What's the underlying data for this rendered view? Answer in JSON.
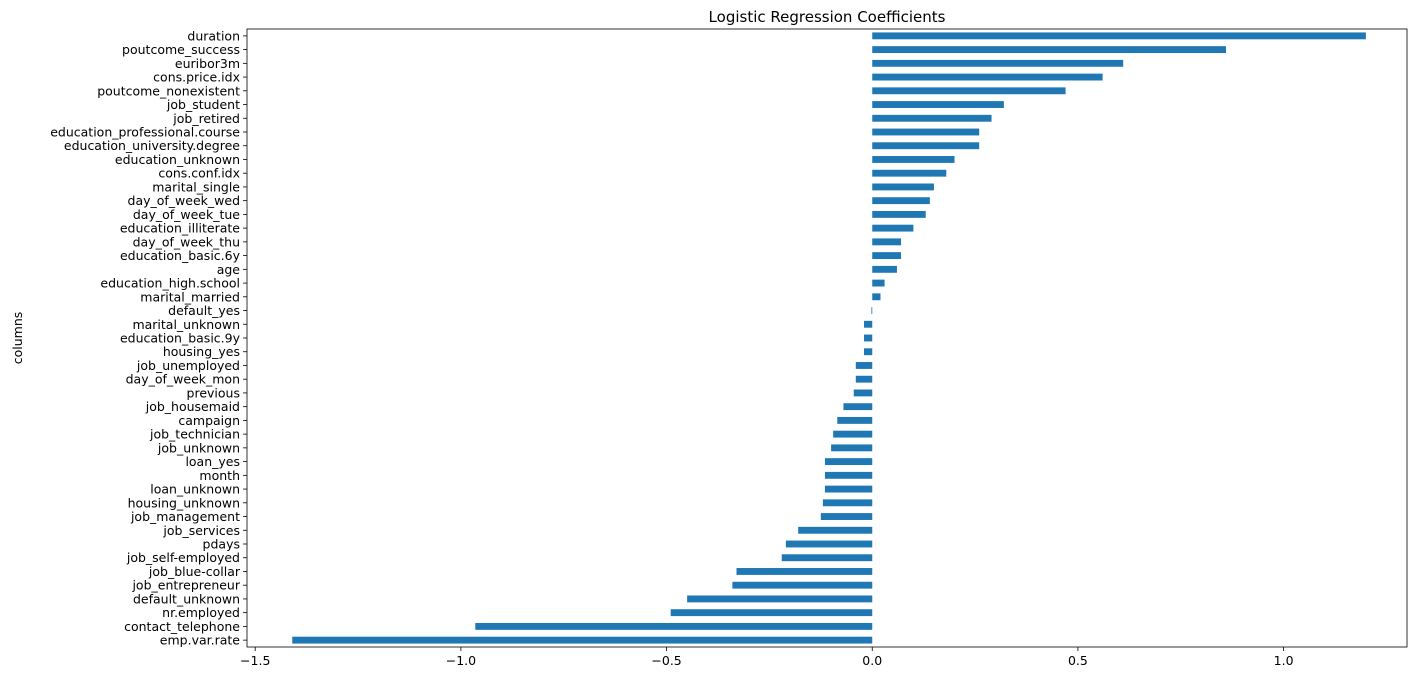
{
  "chart_data": {
    "type": "bar",
    "orientation": "horizontal",
    "title": "Logistic Regression Coefficients",
    "xlabel": "",
    "ylabel": "columns",
    "xlim": [
      -1.52,
      1.3
    ],
    "xticks": [
      -1.5,
      -1.0,
      -0.5,
      0.0,
      0.5,
      1.0
    ],
    "xtick_labels": [
      "−1.5",
      "−1.0",
      "−0.5",
      "0.0",
      "0.5",
      "1.0"
    ],
    "grid": false,
    "bar_color": "#1f77b4",
    "categories": [
      "duration",
      "poutcome_success",
      "euribor3m",
      "cons.price.idx",
      "poutcome_nonexistent",
      "job_student",
      "job_retired",
      "education_professional.course",
      "education_university.degree",
      "education_unknown",
      "cons.conf.idx",
      "marital_single",
      "day_of_week_wed",
      "day_of_week_tue",
      "education_illiterate",
      "day_of_week_thu",
      "education_basic.6y",
      "age",
      "education_high.school",
      "marital_married",
      "default_yes",
      "marital_unknown",
      "education_basic.9y",
      "housing_yes",
      "job_unemployed",
      "day_of_week_mon",
      "previous",
      "job_housemaid",
      "campaign",
      "job_technician",
      "job_unknown",
      "loan_yes",
      "month",
      "loan_unknown",
      "housing_unknown",
      "job_management",
      "job_services",
      "pdays",
      "job_self-employed",
      "job_blue-collar",
      "job_entrepreneur",
      "default_unknown",
      "nr.employed",
      "contact_telephone",
      "emp.var.rate"
    ],
    "values": [
      1.2,
      0.86,
      0.61,
      0.56,
      0.47,
      0.32,
      0.29,
      0.26,
      0.26,
      0.2,
      0.18,
      0.15,
      0.14,
      0.13,
      0.1,
      0.07,
      0.07,
      0.06,
      0.03,
      0.02,
      -0.002,
      -0.02,
      -0.02,
      -0.02,
      -0.04,
      -0.04,
      -0.045,
      -0.07,
      -0.085,
      -0.095,
      -0.1,
      -0.115,
      -0.115,
      -0.115,
      -0.12,
      -0.125,
      -0.18,
      -0.21,
      -0.22,
      -0.33,
      -0.34,
      -0.45,
      -0.49,
      -0.965,
      -1.41
    ]
  }
}
